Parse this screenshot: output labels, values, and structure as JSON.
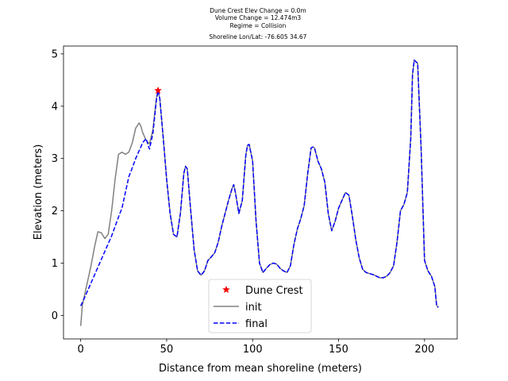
{
  "chart_data": {
    "type": "line",
    "title_lines": [
      "Dune Crest Elev Change = 0.0m",
      "Volume Change = 12.474m3",
      "Regime = Collision",
      "Shoreline Lon/Lat: -76.605 34.67"
    ],
    "xlabel": "Distance from mean shoreline (meters)",
    "ylabel": "Elevation (meters)",
    "xlim": [
      -10,
      219
    ],
    "ylim": [
      -0.45,
      5.15
    ],
    "xticks": [
      0,
      50,
      100,
      150,
      200
    ],
    "yticks": [
      0,
      1,
      2,
      3,
      4,
      5
    ],
    "legend_position": "lower center",
    "legend": [
      {
        "label": "Dune Crest",
        "marker": "star",
        "color": "#ff0000"
      },
      {
        "label": "init",
        "style": "solid",
        "color": "#808080"
      },
      {
        "label": "final",
        "style": "dashed",
        "color": "#0000ff"
      }
    ],
    "dune_crest": {
      "x": 45,
      "y": 4.3
    },
    "series": [
      {
        "name": "init",
        "color": "#808080",
        "style": "solid",
        "x": [
          0,
          1,
          2,
          4,
          6,
          8,
          10,
          12,
          14,
          16,
          18,
          20,
          22,
          24,
          26,
          28,
          30,
          32,
          34,
          35,
          36,
          38,
          40,
          42,
          44,
          45,
          46,
          48,
          50,
          52,
          54,
          56,
          58,
          60,
          61,
          62,
          64,
          66,
          68,
          70,
          72,
          74,
          76,
          78,
          80,
          82,
          84,
          86,
          88,
          89,
          90,
          92,
          94,
          96,
          97,
          98,
          100,
          102,
          104,
          106,
          108,
          110,
          112,
          114,
          116,
          118,
          120,
          122,
          124,
          126,
          128,
          130,
          132,
          134,
          135,
          136,
          138,
          140,
          142,
          144,
          146,
          148,
          150,
          152,
          154,
          156,
          158,
          160,
          162,
          164,
          166,
          168,
          170,
          172,
          174,
          176,
          178,
          180,
          182,
          184,
          186,
          188,
          190,
          192,
          193,
          194,
          196,
          198,
          200,
          202,
          204,
          206,
          207,
          208
        ],
        "y": [
          -0.2,
          0.2,
          0.35,
          0.65,
          0.95,
          1.3,
          1.6,
          1.58,
          1.47,
          1.55,
          2.0,
          2.6,
          3.08,
          3.12,
          3.08,
          3.12,
          3.3,
          3.58,
          3.68,
          3.62,
          3.5,
          3.35,
          3.28,
          3.55,
          4.15,
          4.3,
          4.15,
          3.4,
          2.6,
          1.95,
          1.55,
          1.5,
          1.95,
          2.72,
          2.85,
          2.8,
          2.0,
          1.25,
          0.85,
          0.77,
          0.85,
          1.05,
          1.12,
          1.2,
          1.4,
          1.7,
          1.95,
          2.2,
          2.42,
          2.5,
          2.35,
          1.95,
          2.2,
          3.05,
          3.25,
          3.27,
          2.95,
          1.8,
          1.0,
          0.82,
          0.9,
          0.97,
          1.0,
          0.98,
          0.9,
          0.85,
          0.82,
          0.95,
          1.35,
          1.65,
          1.85,
          2.1,
          2.7,
          3.2,
          3.22,
          3.2,
          2.95,
          2.8,
          2.55,
          1.95,
          1.62,
          1.8,
          2.05,
          2.2,
          2.35,
          2.3,
          1.9,
          1.45,
          1.1,
          0.88,
          0.82,
          0.8,
          0.78,
          0.75,
          0.72,
          0.72,
          0.75,
          0.82,
          0.95,
          1.4,
          2.0,
          2.12,
          2.35,
          3.4,
          4.6,
          4.88,
          4.82,
          3.2,
          1.05,
          0.85,
          0.75,
          0.55,
          0.2,
          0.15
        ]
      },
      {
        "name": "final",
        "color": "#0000ff",
        "style": "dashed",
        "x": [
          0,
          1,
          2,
          4,
          6,
          8,
          10,
          12,
          14,
          16,
          18,
          20,
          22,
          24,
          26,
          28,
          30,
          32,
          34,
          35,
          36,
          38,
          40,
          42,
          44,
          45,
          46,
          48,
          50,
          52,
          54,
          56,
          58,
          60,
          61,
          62,
          64,
          66,
          68,
          70,
          72,
          74,
          76,
          78,
          80,
          82,
          84,
          86,
          88,
          89,
          90,
          92,
          94,
          96,
          97,
          98,
          100,
          102,
          104,
          106,
          108,
          110,
          112,
          114,
          116,
          118,
          120,
          122,
          124,
          126,
          128,
          130,
          132,
          134,
          135,
          136,
          138,
          140,
          142,
          144,
          146,
          148,
          150,
          152,
          154,
          156,
          158,
          160,
          162,
          164,
          166,
          168,
          170,
          172,
          174,
          176,
          178,
          180,
          182,
          184,
          186,
          188,
          190,
          192,
          193,
          194,
          196,
          198,
          200,
          202,
          204,
          206,
          207,
          208
        ],
        "y": [
          0.18,
          0.25,
          0.32,
          0.47,
          0.62,
          0.77,
          0.92,
          1.07,
          1.22,
          1.37,
          1.52,
          1.7,
          1.88,
          2.05,
          2.35,
          2.65,
          2.82,
          3.0,
          3.15,
          3.22,
          3.3,
          3.38,
          3.18,
          3.48,
          4.1,
          4.3,
          4.15,
          3.4,
          2.6,
          1.95,
          1.55,
          1.5,
          1.95,
          2.72,
          2.85,
          2.8,
          2.0,
          1.25,
          0.85,
          0.77,
          0.85,
          1.05,
          1.12,
          1.2,
          1.4,
          1.7,
          1.95,
          2.2,
          2.42,
          2.5,
          2.35,
          1.95,
          2.2,
          3.05,
          3.25,
          3.27,
          2.95,
          1.8,
          1.0,
          0.82,
          0.9,
          0.97,
          1.0,
          0.98,
          0.9,
          0.85,
          0.82,
          0.95,
          1.35,
          1.65,
          1.85,
          2.1,
          2.7,
          3.2,
          3.22,
          3.2,
          2.95,
          2.8,
          2.55,
          1.95,
          1.62,
          1.8,
          2.05,
          2.2,
          2.35,
          2.3,
          1.9,
          1.45,
          1.1,
          0.88,
          0.82,
          0.8,
          0.78,
          0.75,
          0.72,
          0.72,
          0.75,
          0.82,
          0.95,
          1.4,
          2.0,
          2.12,
          2.35,
          3.4,
          4.6,
          4.88,
          4.82,
          3.2,
          1.05,
          0.85,
          0.75,
          0.55,
          0.2,
          0.15
        ]
      }
    ]
  }
}
